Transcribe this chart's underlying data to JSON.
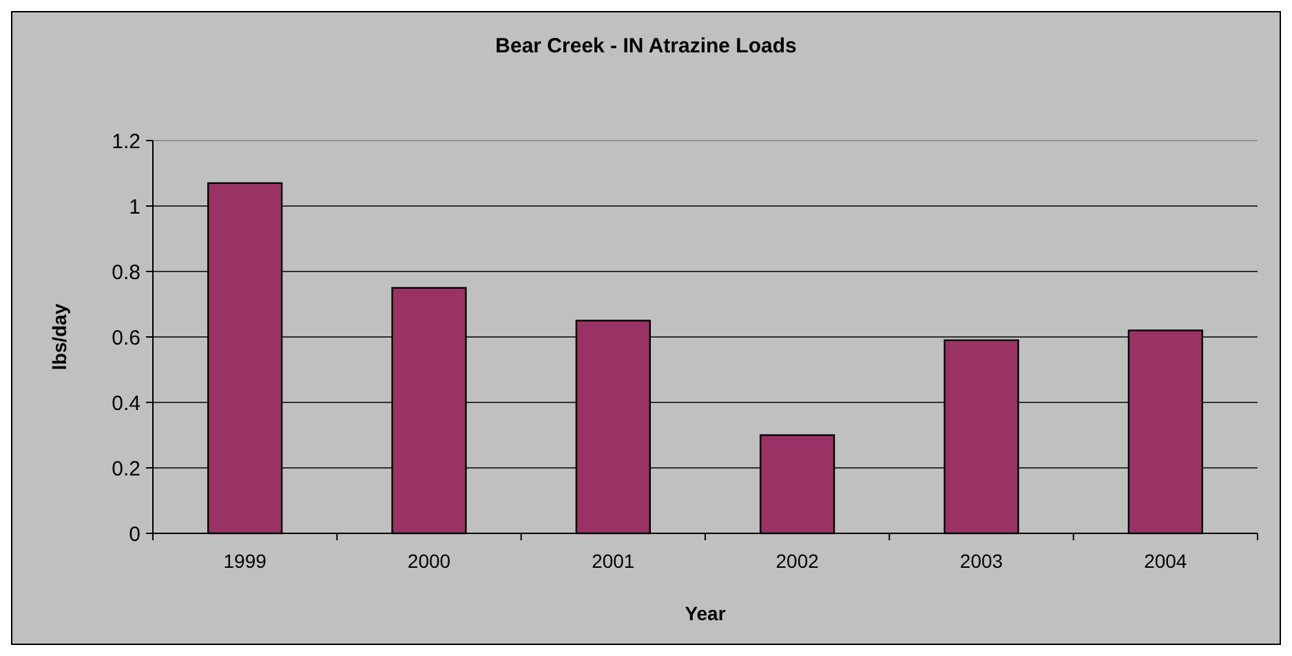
{
  "chart_data": {
    "type": "bar",
    "title": "Bear Creek - IN Atrazine Loads",
    "xlabel": "Year",
    "ylabel": "lbs/day",
    "categories": [
      "1999",
      "2000",
      "2001",
      "2002",
      "2003",
      "2004"
    ],
    "values": [
      1.07,
      0.75,
      0.65,
      0.3,
      0.59,
      0.62
    ],
    "color": "#993366",
    "ylim": [
      0,
      1.2
    ],
    "yticks": [
      0,
      0.2,
      0.4,
      0.6,
      0.8,
      1,
      1.2
    ],
    "grid": "y"
  }
}
